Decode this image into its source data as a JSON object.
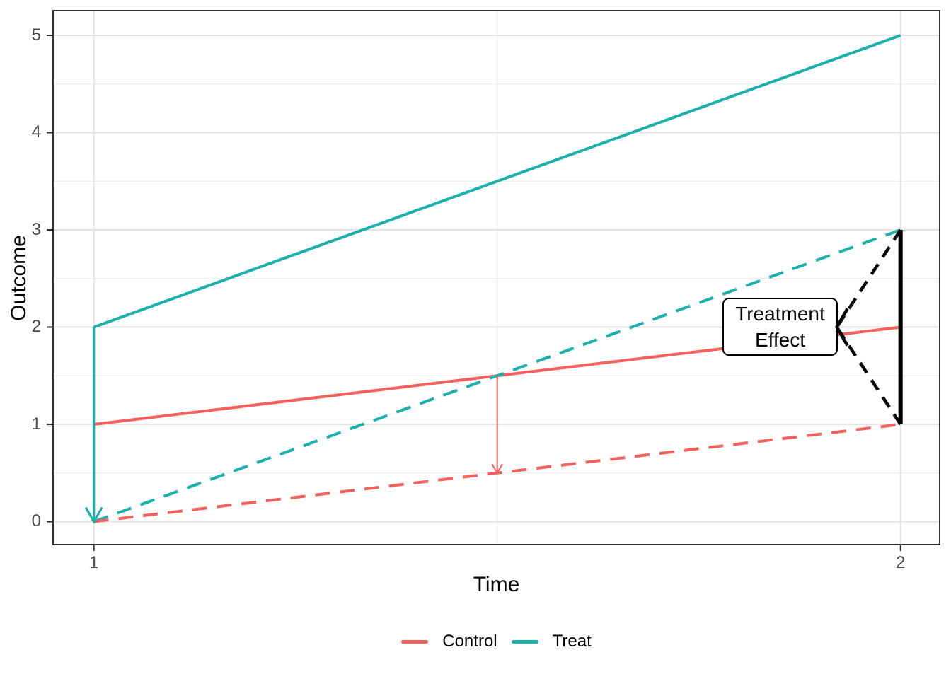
{
  "colors": {
    "control": "#F4605C",
    "treat": "#1BB0AB",
    "effect_black": "#000000",
    "tick_label": "#4D4D4D",
    "grid_major": "#E3E3E3",
    "grid_minor": "#EDEDED",
    "panel_border": "#333333",
    "background": "#FFFFFF"
  },
  "axes": {
    "x": {
      "title": "Time",
      "ticks": [
        "1",
        "2"
      ]
    },
    "y": {
      "title": "Outcome",
      "ticks": [
        "0",
        "1",
        "2",
        "3",
        "4",
        "5"
      ]
    }
  },
  "legend": {
    "position": "bottom",
    "items": [
      {
        "label": "Control",
        "color": "#F4605C"
      },
      {
        "label": "Treat",
        "color": "#1BB0AB"
      }
    ]
  },
  "annotation_label": {
    "line1": "Treatment",
    "line2": "Effect"
  },
  "chart_data": {
    "type": "line",
    "xlabel": "Time",
    "ylabel": "Outcome",
    "xlim": [
      0.95,
      2.05
    ],
    "ylim": [
      -0.25,
      5.25
    ],
    "x_ticks": [
      1,
      2
    ],
    "y_ticks": [
      0,
      1,
      2,
      3,
      4,
      5
    ],
    "grid": "major and minor, light gray, white panel with dark border",
    "legend_position": "bottom",
    "series": [
      {
        "name": "Treat (observed)",
        "color": "#1BB0AB",
        "style": "solid",
        "x": [
          1,
          2
        ],
        "y": [
          2,
          5
        ]
      },
      {
        "name": "Control (observed)",
        "color": "#F4605C",
        "style": "solid",
        "x": [
          1,
          2
        ],
        "y": [
          1,
          2
        ]
      },
      {
        "name": "Treat (shifted to common origin)",
        "color": "#1BB0AB",
        "style": "dashed",
        "x": [
          1,
          2
        ],
        "y": [
          0,
          3
        ]
      },
      {
        "name": "Control (shifted to common origin)",
        "color": "#F4605C",
        "style": "dashed",
        "x": [
          1,
          2
        ],
        "y": [
          0,
          1
        ]
      }
    ],
    "annotations": {
      "label": {
        "text": "Treatment Effect",
        "x": 1.86,
        "y": 2
      },
      "arrows": [
        {
          "name": "treat-shift-arrow",
          "layer": "base",
          "color": "#1BB0AB",
          "style": "solid",
          "width": 3.2,
          "from": [
            1,
            2
          ],
          "to": [
            1,
            0
          ],
          "head": "v"
        },
        {
          "name": "control-shift-arrow",
          "layer": "base",
          "color": "#F4605C",
          "style": "solid",
          "width": 2,
          "from": [
            1.5,
            1.5
          ],
          "to": [
            1.5,
            0.5
          ],
          "head": "v"
        },
        {
          "name": "effect-arrow-top",
          "layer": "top",
          "color": "#000000",
          "style": "dashed",
          "width": 4.5,
          "from": [
            2,
            3
          ],
          "to": [
            1.921,
            2
          ],
          "head": "none"
        },
        {
          "name": "effect-arrow-bottom",
          "layer": "top",
          "color": "#000000",
          "style": "dashed",
          "width": 4.5,
          "from": [
            2,
            1
          ],
          "to": [
            1.921,
            2
          ],
          "head": "chevron-left"
        }
      ],
      "bracket": {
        "color": "#000000",
        "width": 6,
        "x": 2,
        "y_from": 1,
        "y_to": 3
      }
    }
  }
}
